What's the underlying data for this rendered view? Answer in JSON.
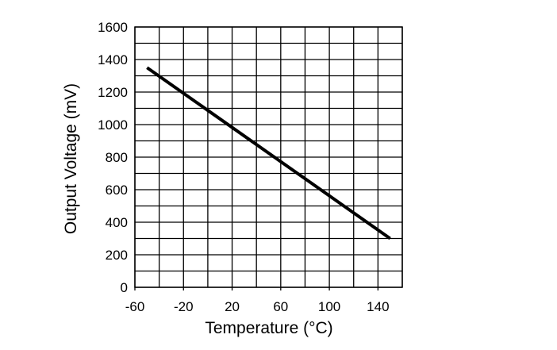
{
  "chart_data": {
    "type": "line",
    "title": "",
    "xlabel": "Temperature (°C)",
    "ylabel": "Output Voltage (mV)",
    "xlim": [
      -60,
      160
    ],
    "ylim": [
      0,
      1600
    ],
    "grid": true,
    "x_ticks": [
      -60,
      -20,
      20,
      60,
      100,
      140
    ],
    "y_ticks": [
      0,
      200,
      400,
      600,
      800,
      1000,
      1200,
      1400,
      1600
    ],
    "x_grid_step": 20,
    "y_grid_step": 100,
    "series": [
      {
        "name": "Output Voltage",
        "x": [
          -50,
          150
        ],
        "y": [
          1350,
          300
        ],
        "color": "#000000"
      }
    ]
  }
}
